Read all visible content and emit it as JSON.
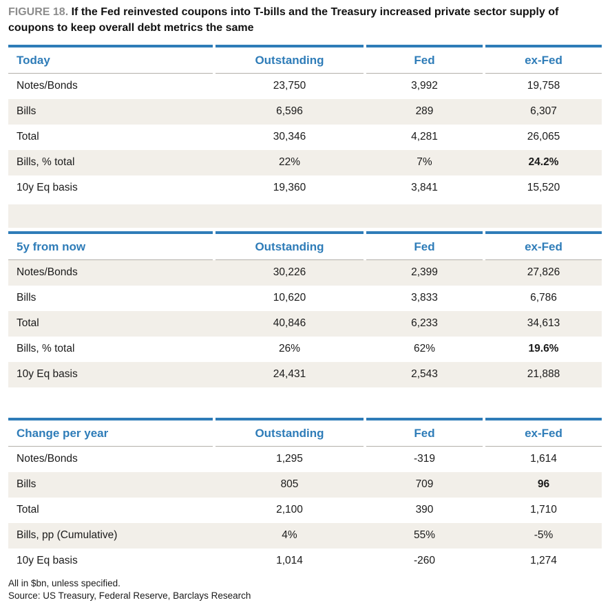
{
  "figure": {
    "label": "FIGURE 18.",
    "title": "If the Fed reinvested coupons into T-bills and the Treasury increased private sector supply of coupons to keep overall debt metrics the same"
  },
  "colors": {
    "accent_blue": "#2e7cb8",
    "row_shade_beige": "#f2efe9",
    "header_underline_gray": "#b3afa9",
    "figure_label_gray": "#8c8c8c",
    "text_dark": "#1a1a1a"
  },
  "columns": [
    "Outstanding",
    "Fed",
    "ex-Fed"
  ],
  "tables": [
    {
      "title": "Today",
      "gap_after": "shaded",
      "rows": [
        {
          "label": "Notes/Bonds",
          "values": [
            "23,750",
            "3,992",
            "19,758"
          ],
          "shaded": false,
          "bold_col": null
        },
        {
          "label": "Bills",
          "values": [
            "6,596",
            "289",
            "6,307"
          ],
          "shaded": true,
          "bold_col": null
        },
        {
          "label": "Total",
          "values": [
            "30,346",
            "4,281",
            "26,065"
          ],
          "shaded": false,
          "bold_col": null
        },
        {
          "label": "Bills, % total",
          "values": [
            "22%",
            "7%",
            "24.2%"
          ],
          "shaded": true,
          "bold_col": 2
        },
        {
          "label": "10y Eq basis",
          "values": [
            "19,360",
            "3,841",
            "15,520"
          ],
          "shaded": false,
          "bold_col": null
        }
      ]
    },
    {
      "title": "5y from now",
      "gap_after": "white",
      "rows": [
        {
          "label": "Notes/Bonds",
          "values": [
            "30,226",
            "2,399",
            "27,826"
          ],
          "shaded": true,
          "bold_col": null
        },
        {
          "label": "Bills",
          "values": [
            "10,620",
            "3,833",
            "6,786"
          ],
          "shaded": false,
          "bold_col": null
        },
        {
          "label": "Total",
          "values": [
            "40,846",
            "6,233",
            "34,613"
          ],
          "shaded": true,
          "bold_col": null
        },
        {
          "label": "Bills, % total",
          "values": [
            "26%",
            "62%",
            "19.6%"
          ],
          "shaded": false,
          "bold_col": 2
        },
        {
          "label": "10y Eq basis",
          "values": [
            "24,431",
            "2,543",
            "21,888"
          ],
          "shaded": true,
          "bold_col": null
        }
      ]
    },
    {
      "title": "Change per year",
      "gap_after": null,
      "rows": [
        {
          "label": "Notes/Bonds",
          "values": [
            "1,295",
            "-319",
            "1,614"
          ],
          "shaded": false,
          "bold_col": null
        },
        {
          "label": "Bills",
          "values": [
            "805",
            "709",
            "96"
          ],
          "shaded": true,
          "bold_col": 2
        },
        {
          "label": "Total",
          "values": [
            "2,100",
            "390",
            "1,710"
          ],
          "shaded": false,
          "bold_col": null
        },
        {
          "label": "Bills, pp (Cumulative)",
          "values": [
            "4%",
            "55%",
            "-5%"
          ],
          "shaded": true,
          "bold_col": null
        },
        {
          "label": "10y Eq basis",
          "values": [
            "1,014",
            "-260",
            "1,274"
          ],
          "shaded": false,
          "bold_col": null
        }
      ]
    }
  ],
  "footnotes": [
    "All in $bn, unless specified.",
    "Source: US Treasury, Federal Reserve, Barclays Research"
  ]
}
